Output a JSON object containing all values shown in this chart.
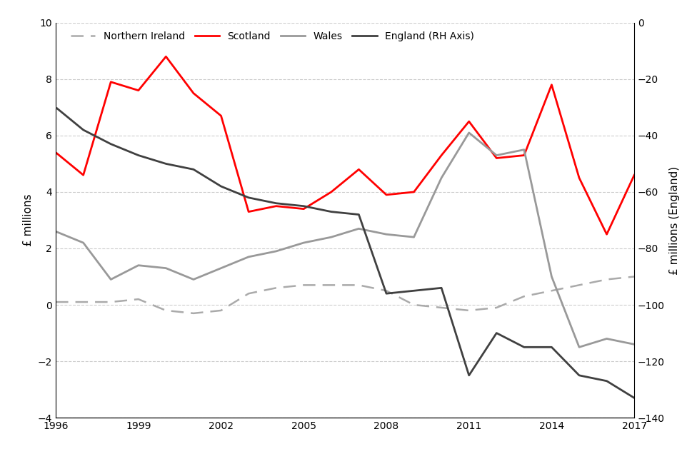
{
  "years": [
    1996,
    1997,
    1998,
    1999,
    2000,
    2001,
    2002,
    2003,
    2004,
    2005,
    2006,
    2007,
    2008,
    2009,
    2010,
    2011,
    2012,
    2013,
    2014,
    2015,
    2016,
    2017
  ],
  "scotland": [
    5.4,
    4.6,
    7.9,
    7.6,
    8.8,
    7.5,
    6.7,
    3.3,
    3.5,
    3.4,
    4.0,
    4.8,
    3.9,
    4.0,
    5.3,
    6.5,
    5.2,
    5.3,
    7.8,
    4.5,
    2.5,
    4.6
  ],
  "wales": [
    2.6,
    2.2,
    0.9,
    1.4,
    1.3,
    0.9,
    1.3,
    1.7,
    1.9,
    2.2,
    2.4,
    2.7,
    2.5,
    2.4,
    4.5,
    6.1,
    5.3,
    5.5,
    1.0,
    -1.5,
    -1.2,
    -1.4
  ],
  "northern_ireland": [
    0.1,
    0.1,
    0.1,
    0.2,
    -0.2,
    -0.3,
    -0.2,
    0.4,
    0.6,
    0.7,
    0.7,
    0.7,
    0.5,
    0.0,
    -0.1,
    -0.2,
    -0.1,
    0.3,
    0.5,
    0.7,
    0.9,
    1.0
  ],
  "england": [
    -30,
    -38,
    -43,
    -47,
    -50,
    -52,
    -58,
    -62,
    -64,
    -65,
    -67,
    -68,
    -96,
    -95,
    -94,
    -125,
    -110,
    -115,
    -115,
    -125,
    -127,
    -133
  ],
  "ylabel_left": "£ millions",
  "ylabel_right": "£ millions (England)",
  "ylim_left": [
    -4,
    10
  ],
  "ylim_right": [
    -140,
    0
  ],
  "xlim": [
    1996,
    2017
  ],
  "xticks": [
    1996,
    1999,
    2002,
    2005,
    2008,
    2011,
    2014,
    2017
  ],
  "yticks_left": [
    -4,
    -2,
    0,
    2,
    4,
    6,
    8,
    10
  ],
  "yticks_right": [
    -140,
    -120,
    -100,
    -80,
    -60,
    -40,
    -20,
    0
  ],
  "scotland_color": "#FF0000",
  "wales_color": "#999999",
  "northern_ireland_color": "#AAAAAA",
  "england_color": "#404040",
  "background_color": "#FFFFFF",
  "grid_color": "#CCCCCC"
}
